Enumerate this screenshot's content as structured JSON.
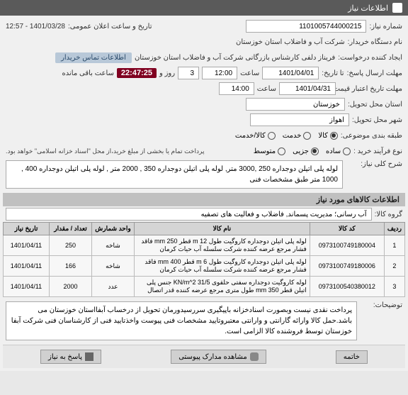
{
  "header": {
    "title": "اطلاعات نیاز"
  },
  "fields": {
    "need_number_label": "شماره نیاز:",
    "need_number": "1101005744000215",
    "announce_label": "تاریخ و ساعت اعلان عمومی:",
    "announce_value": "1401/03/28 - 12:57",
    "buyer_org_label": "نام دستگاه خریدار:",
    "buyer_org": "شرکت آب و فاضلاب استان خوزستان",
    "creator_label": "ایجاد کننده درخواست:",
    "creator": "فریناز دلفی کارشناس بازرگانی شرکت آب و فاضلاب استان خوزستان",
    "buyer_contact": "اطلاعات تماس خریدار",
    "deadline_label": "مهلت ارسال پاسخ:",
    "deadline_to_label": "تا تاریخ:",
    "deadline_date": "1401/04/01",
    "time_label": "ساعت",
    "deadline_time": "12:00",
    "days_count": "3",
    "days_and_label": "روز و",
    "countdown": "22:47:25",
    "remaining_label": "ساعت باقی مانده",
    "validity_label": "مهلت تاریخ اعتبار قیمت تا تاریخ:",
    "validity_date": "1401/04/31",
    "validity_time": "14:00",
    "province_label": "استان محل تحویل:",
    "province": "خوزستان",
    "city_label": "شهر محل تحویل:",
    "city": "اهواز",
    "category_label": "طبقه بندی موضوعی:",
    "cat_goods": "کالا",
    "cat_service": "خدمت",
    "cat_both": "کالا/خدمت",
    "process_label": "نوع فرآیند خرید :",
    "proc_simple": "ساده",
    "proc_partial": "جزیی",
    "proc_medium": "متوسط",
    "payment_note": "پرداخت تمام یا بخشی از مبلغ خرید،از محل \"اسناد خزانه اسلامی\" خواهد بود.",
    "need_desc_label": "شرح کلی نیاز:",
    "need_desc": "لوله پلی اتیلن دوجداره 250 ,3000 متر, لوله پلی اتیلن دوجداره 350 , 2000 متر , لوله پلی اتیلن دوجداره 400 , 1000 متر طبق مشخصات فنی",
    "group_label": "گروه کالا:",
    "group": "آب رسانی؛ مدیریت پسماند, فاضلاب و فعالیت های تصفیه",
    "explain_label": "توضیحات:",
    "explain": "پرداخت نقدی نیست وبصورت اسنادخزانه باپیگیری سررسیدورمان تحویل از درخساب آبفااستان خوزستان می باشد.حمل کالا وارائه گارانتی و وارانتی معتبروتایید مشخصات فنی پیوست واخذتایید فنی از کارشناسان فنی شرکت آبفا خوزستان توسط فروشنده کالا الزامی است."
  },
  "sections": {
    "goods_info": "اطلاعات کالاهای مورد نیاز"
  },
  "table": {
    "headers": {
      "row": "ردیف",
      "code": "کد کالا",
      "name": "نام کالا",
      "unit": "واحد شمارش",
      "qty": "تعداد / مقدار",
      "date": "تاریخ نیاز"
    },
    "rows": [
      {
        "n": "1",
        "code": "0973100749180004",
        "name": "لوله پلی اتیلن دوجداره کاروگیت طول m 12 قطر mm 250 فاقد فشار مرجع عرضه کننده شرکت سلسله آب حیات کرمان",
        "unit": "شاخه",
        "qty": "250",
        "date": "1401/04/11"
      },
      {
        "n": "2",
        "code": "0973100749180006",
        "name": "لوله پلی اتیلن دوجداره کاروگیت طول m 6 قطر mm 400 فاقد فشار مرجع عرضه کننده شرکت سلسله آب حیات کرمان",
        "unit": "شاخه",
        "qty": "166",
        "date": "1401/04/11"
      },
      {
        "n": "3",
        "code": "0973100540380012",
        "name": "لوله کاروگیت دوجداره سفتی حلقوی KN/m^2 31/5 جنس پلی اتیلن قطر mm 350 طول متری مرجع عرضه کننده قدر اتصال",
        "unit": "عدد",
        "qty": "2000",
        "date": "1401/04/11"
      }
    ]
  },
  "footer": {
    "attach": "مشاهده مدارک پیوستی",
    "reply": "پاسخ به نیاز",
    "close": "خاتمه"
  },
  "colors": {
    "header_bg": "#5a5a5a",
    "section_bg": "#c0c0c0",
    "countdown_bg": "#800020"
  }
}
